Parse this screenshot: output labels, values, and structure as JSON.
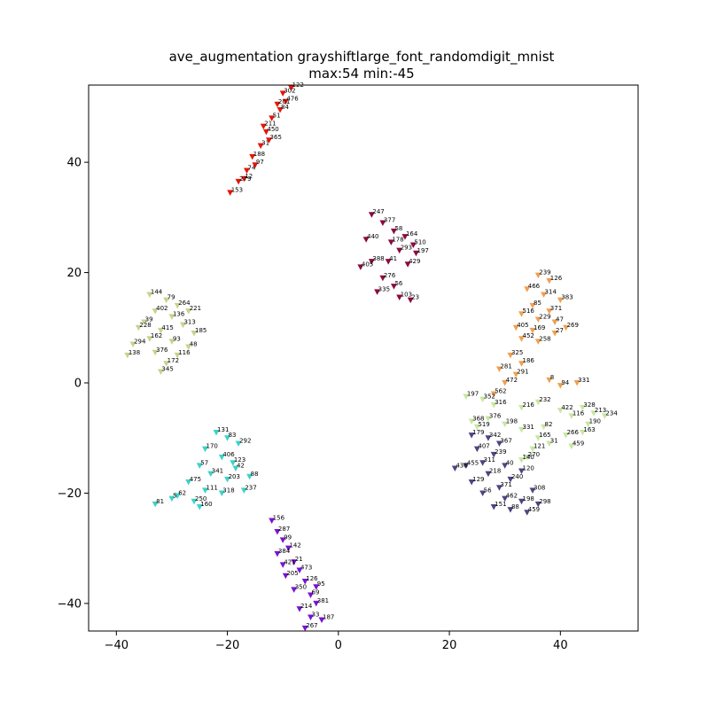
{
  "chart_data": {
    "type": "scatter",
    "title": "ave_augmentation grayshiftlarge_font_randomdigit_mnist",
    "subtitle": "max:54 min:-45",
    "marker": "triangle-down",
    "xlim": [
      -45,
      54
    ],
    "ylim": [
      -45,
      54
    ],
    "x_ticks": [
      -40,
      -20,
      0,
      20,
      40
    ],
    "y_ticks": [
      -40,
      -20,
      0,
      20,
      40
    ],
    "x_tick_labels": [
      "−40",
      "−20",
      "0",
      "20",
      "40"
    ],
    "y_tick_labels": [
      "−40",
      "−20",
      "0",
      "20",
      "40"
    ],
    "grid": false,
    "clusters": [
      {
        "color": "#e8140a",
        "points": [
          [
            -19.5,
            34.5,
            "153"
          ],
          [
            -18,
            36.5,
            "279"
          ],
          [
            -16.5,
            38.5,
            "74"
          ],
          [
            -15.5,
            41,
            "188"
          ],
          [
            -14,
            43,
            "31"
          ],
          [
            -13,
            45.5,
            "450"
          ],
          [
            -12,
            48,
            "51"
          ],
          [
            -11,
            50.5,
            "201"
          ],
          [
            -10,
            52.5,
            "302"
          ],
          [
            -8.5,
            53.5,
            "122"
          ],
          [
            -13.5,
            46.5,
            "211"
          ],
          [
            -15,
            39.5,
            "97"
          ],
          [
            -12.5,
            44,
            "365"
          ],
          [
            -10.5,
            49.5,
            "84"
          ],
          [
            -17,
            37,
            "12"
          ],
          [
            -9.5,
            51,
            "476"
          ]
        ]
      },
      {
        "color": "#8c0a40",
        "points": [
          [
            6,
            30.5,
            "247"
          ],
          [
            8,
            29,
            "377"
          ],
          [
            10,
            27.5,
            "58"
          ],
          [
            12,
            26.5,
            "164"
          ],
          [
            13.5,
            25,
            "510"
          ],
          [
            11,
            24,
            "293"
          ],
          [
            14,
            23.5,
            "197"
          ],
          [
            9,
            22,
            "41"
          ],
          [
            12.5,
            21.5,
            "429"
          ],
          [
            6,
            22,
            "388"
          ],
          [
            4,
            21,
            "405"
          ],
          [
            8,
            19,
            "276"
          ],
          [
            10,
            17.5,
            "56"
          ],
          [
            7,
            16.5,
            "335"
          ],
          [
            11,
            15.5,
            "103"
          ],
          [
            13,
            15,
            "23"
          ],
          [
            5,
            26,
            "440"
          ],
          [
            9.5,
            25.5,
            "178"
          ]
        ]
      },
      {
        "color": "#c8d28c",
        "points": [
          [
            -34,
            16,
            "144"
          ],
          [
            -31,
            15,
            "79"
          ],
          [
            -29,
            14,
            "264"
          ],
          [
            -27,
            13,
            "221"
          ],
          [
            -33,
            13,
            "402"
          ],
          [
            -30,
            12,
            "136"
          ],
          [
            -28,
            10.5,
            "313"
          ],
          [
            -35,
            11,
            "39"
          ],
          [
            -32,
            9.5,
            "415"
          ],
          [
            -26,
            9,
            "185"
          ],
          [
            -34,
            8,
            "162"
          ],
          [
            -30,
            7.5,
            "93"
          ],
          [
            -27,
            6.5,
            "48"
          ],
          [
            -37,
            7,
            "294"
          ],
          [
            -33,
            5.5,
            "376"
          ],
          [
            -29,
            5,
            "116"
          ],
          [
            -38,
            5,
            "138"
          ],
          [
            -31,
            3.5,
            "172"
          ],
          [
            -32,
            2,
            "345"
          ],
          [
            -36,
            10,
            "228"
          ]
        ]
      },
      {
        "color": "#3cd2c8",
        "points": [
          [
            -22,
            -9,
            "131"
          ],
          [
            -20,
            -10,
            "83"
          ],
          [
            -18,
            -11,
            "292"
          ],
          [
            -24,
            -12,
            "170"
          ],
          [
            -21,
            -13.5,
            "406"
          ],
          [
            -19,
            -14.5,
            "123"
          ],
          [
            -25,
            -15,
            "57"
          ],
          [
            -23,
            -16.5,
            "341"
          ],
          [
            -20,
            -17.5,
            "203"
          ],
          [
            -16,
            -17,
            "88"
          ],
          [
            -27,
            -18,
            "475"
          ],
          [
            -24,
            -19.5,
            "111"
          ],
          [
            -21,
            -20,
            "318"
          ],
          [
            -17,
            -19.5,
            "237"
          ],
          [
            -29,
            -20.5,
            "62"
          ],
          [
            -26,
            -21.5,
            "250"
          ],
          [
            -33,
            -22,
            "81"
          ],
          [
            -25,
            -22.5,
            "160"
          ],
          [
            -30,
            -21,
            "5"
          ],
          [
            -18.5,
            -15.5,
            "42"
          ]
        ]
      },
      {
        "color": "#7814d2",
        "points": [
          [
            -12,
            -25,
            "156"
          ],
          [
            -11,
            -27,
            "287"
          ],
          [
            -10,
            -28.5,
            "99"
          ],
          [
            -9,
            -30,
            "142"
          ],
          [
            -11,
            -31,
            "384"
          ],
          [
            -8,
            -32.5,
            "21"
          ],
          [
            -7,
            -34,
            "473"
          ],
          [
            -9.5,
            -35,
            "205"
          ],
          [
            -6,
            -36,
            "126"
          ],
          [
            -8,
            -37.5,
            "350"
          ],
          [
            -5,
            -38.5,
            "69"
          ],
          [
            -4,
            -40,
            "381"
          ],
          [
            -7,
            -41,
            "214"
          ],
          [
            -5,
            -42.5,
            "33"
          ],
          [
            -3,
            -43,
            "187"
          ],
          [
            -6,
            -44.5,
            "267"
          ],
          [
            -10,
            -33,
            "421"
          ],
          [
            -4,
            -37,
            "95"
          ]
        ]
      },
      {
        "color": "#f0a050",
        "points": [
          [
            36,
            19.5,
            "239"
          ],
          [
            38,
            18.5,
            "126"
          ],
          [
            34,
            17,
            "466"
          ],
          [
            37,
            16,
            "314"
          ],
          [
            40,
            15,
            "383"
          ],
          [
            35,
            14,
            "85"
          ],
          [
            38,
            13,
            "371"
          ],
          [
            33,
            12.5,
            "516"
          ],
          [
            36,
            11.5,
            "229"
          ],
          [
            39,
            11,
            "47"
          ],
          [
            32,
            10,
            "405"
          ],
          [
            35,
            9.5,
            "169"
          ],
          [
            41,
            10,
            "269"
          ],
          [
            33,
            8,
            "452"
          ],
          [
            36,
            7.5,
            "258"
          ],
          [
            39,
            9,
            "27"
          ],
          [
            31,
            5,
            "325"
          ],
          [
            33,
            3.5,
            "186"
          ],
          [
            29,
            2.5,
            "281"
          ],
          [
            32,
            1.5,
            "291"
          ],
          [
            30,
            0,
            "472"
          ],
          [
            28,
            -2,
            "562"
          ],
          [
            38,
            0.5,
            "8"
          ],
          [
            40,
            -0.5,
            "94"
          ],
          [
            43,
            0,
            "331"
          ]
        ]
      },
      {
        "color": "#c8e6a0",
        "points": [
          [
            23,
            -2.5,
            "197"
          ],
          [
            26,
            -3,
            "352"
          ],
          [
            28,
            -4,
            "316"
          ],
          [
            33,
            -4.5,
            "216"
          ],
          [
            36,
            -3.5,
            "232"
          ],
          [
            40,
            -5,
            "422"
          ],
          [
            44,
            -4.5,
            "328"
          ],
          [
            46,
            -5.5,
            "213"
          ],
          [
            42,
            -6,
            "116"
          ],
          [
            24,
            -7,
            "368"
          ],
          [
            27,
            -6.5,
            "376"
          ],
          [
            30,
            -7.5,
            "198"
          ],
          [
            25,
            -8,
            "519"
          ],
          [
            33,
            -8.5,
            "331"
          ],
          [
            37,
            -8,
            "82"
          ],
          [
            45,
            -7.5,
            "190"
          ],
          [
            36,
            -10,
            "165"
          ],
          [
            41,
            -9.5,
            "266"
          ],
          [
            44,
            -9,
            "163"
          ],
          [
            38,
            -11,
            "31"
          ],
          [
            42,
            -11.5,
            "459"
          ],
          [
            35,
            -12,
            "121"
          ],
          [
            34,
            -13.5,
            "270"
          ],
          [
            33,
            -14,
            "140"
          ],
          [
            48,
            -6,
            "234"
          ]
        ]
      },
      {
        "color": "#4b4682",
        "points": [
          [
            24,
            -9.5,
            "179"
          ],
          [
            27,
            -10,
            "342"
          ],
          [
            29,
            -11,
            "367"
          ],
          [
            25,
            -12,
            "407"
          ],
          [
            28,
            -13,
            "239"
          ],
          [
            23,
            -15,
            "455"
          ],
          [
            26,
            -14.5,
            "311"
          ],
          [
            30,
            -15,
            "40"
          ],
          [
            33,
            -16,
            "120"
          ],
          [
            27,
            -16.5,
            "218"
          ],
          [
            31,
            -17.5,
            "240"
          ],
          [
            24,
            -18,
            "129"
          ],
          [
            29,
            -19,
            "371"
          ],
          [
            35,
            -19.5,
            "308"
          ],
          [
            26,
            -20,
            "56"
          ],
          [
            30,
            -21,
            "462"
          ],
          [
            33,
            -21.5,
            "198"
          ],
          [
            36,
            -22,
            "298"
          ],
          [
            31,
            -23,
            "88"
          ],
          [
            28,
            -22.5,
            "151"
          ],
          [
            34,
            -23.5,
            "459"
          ],
          [
            21,
            -15.5,
            "436"
          ]
        ]
      }
    ]
  }
}
